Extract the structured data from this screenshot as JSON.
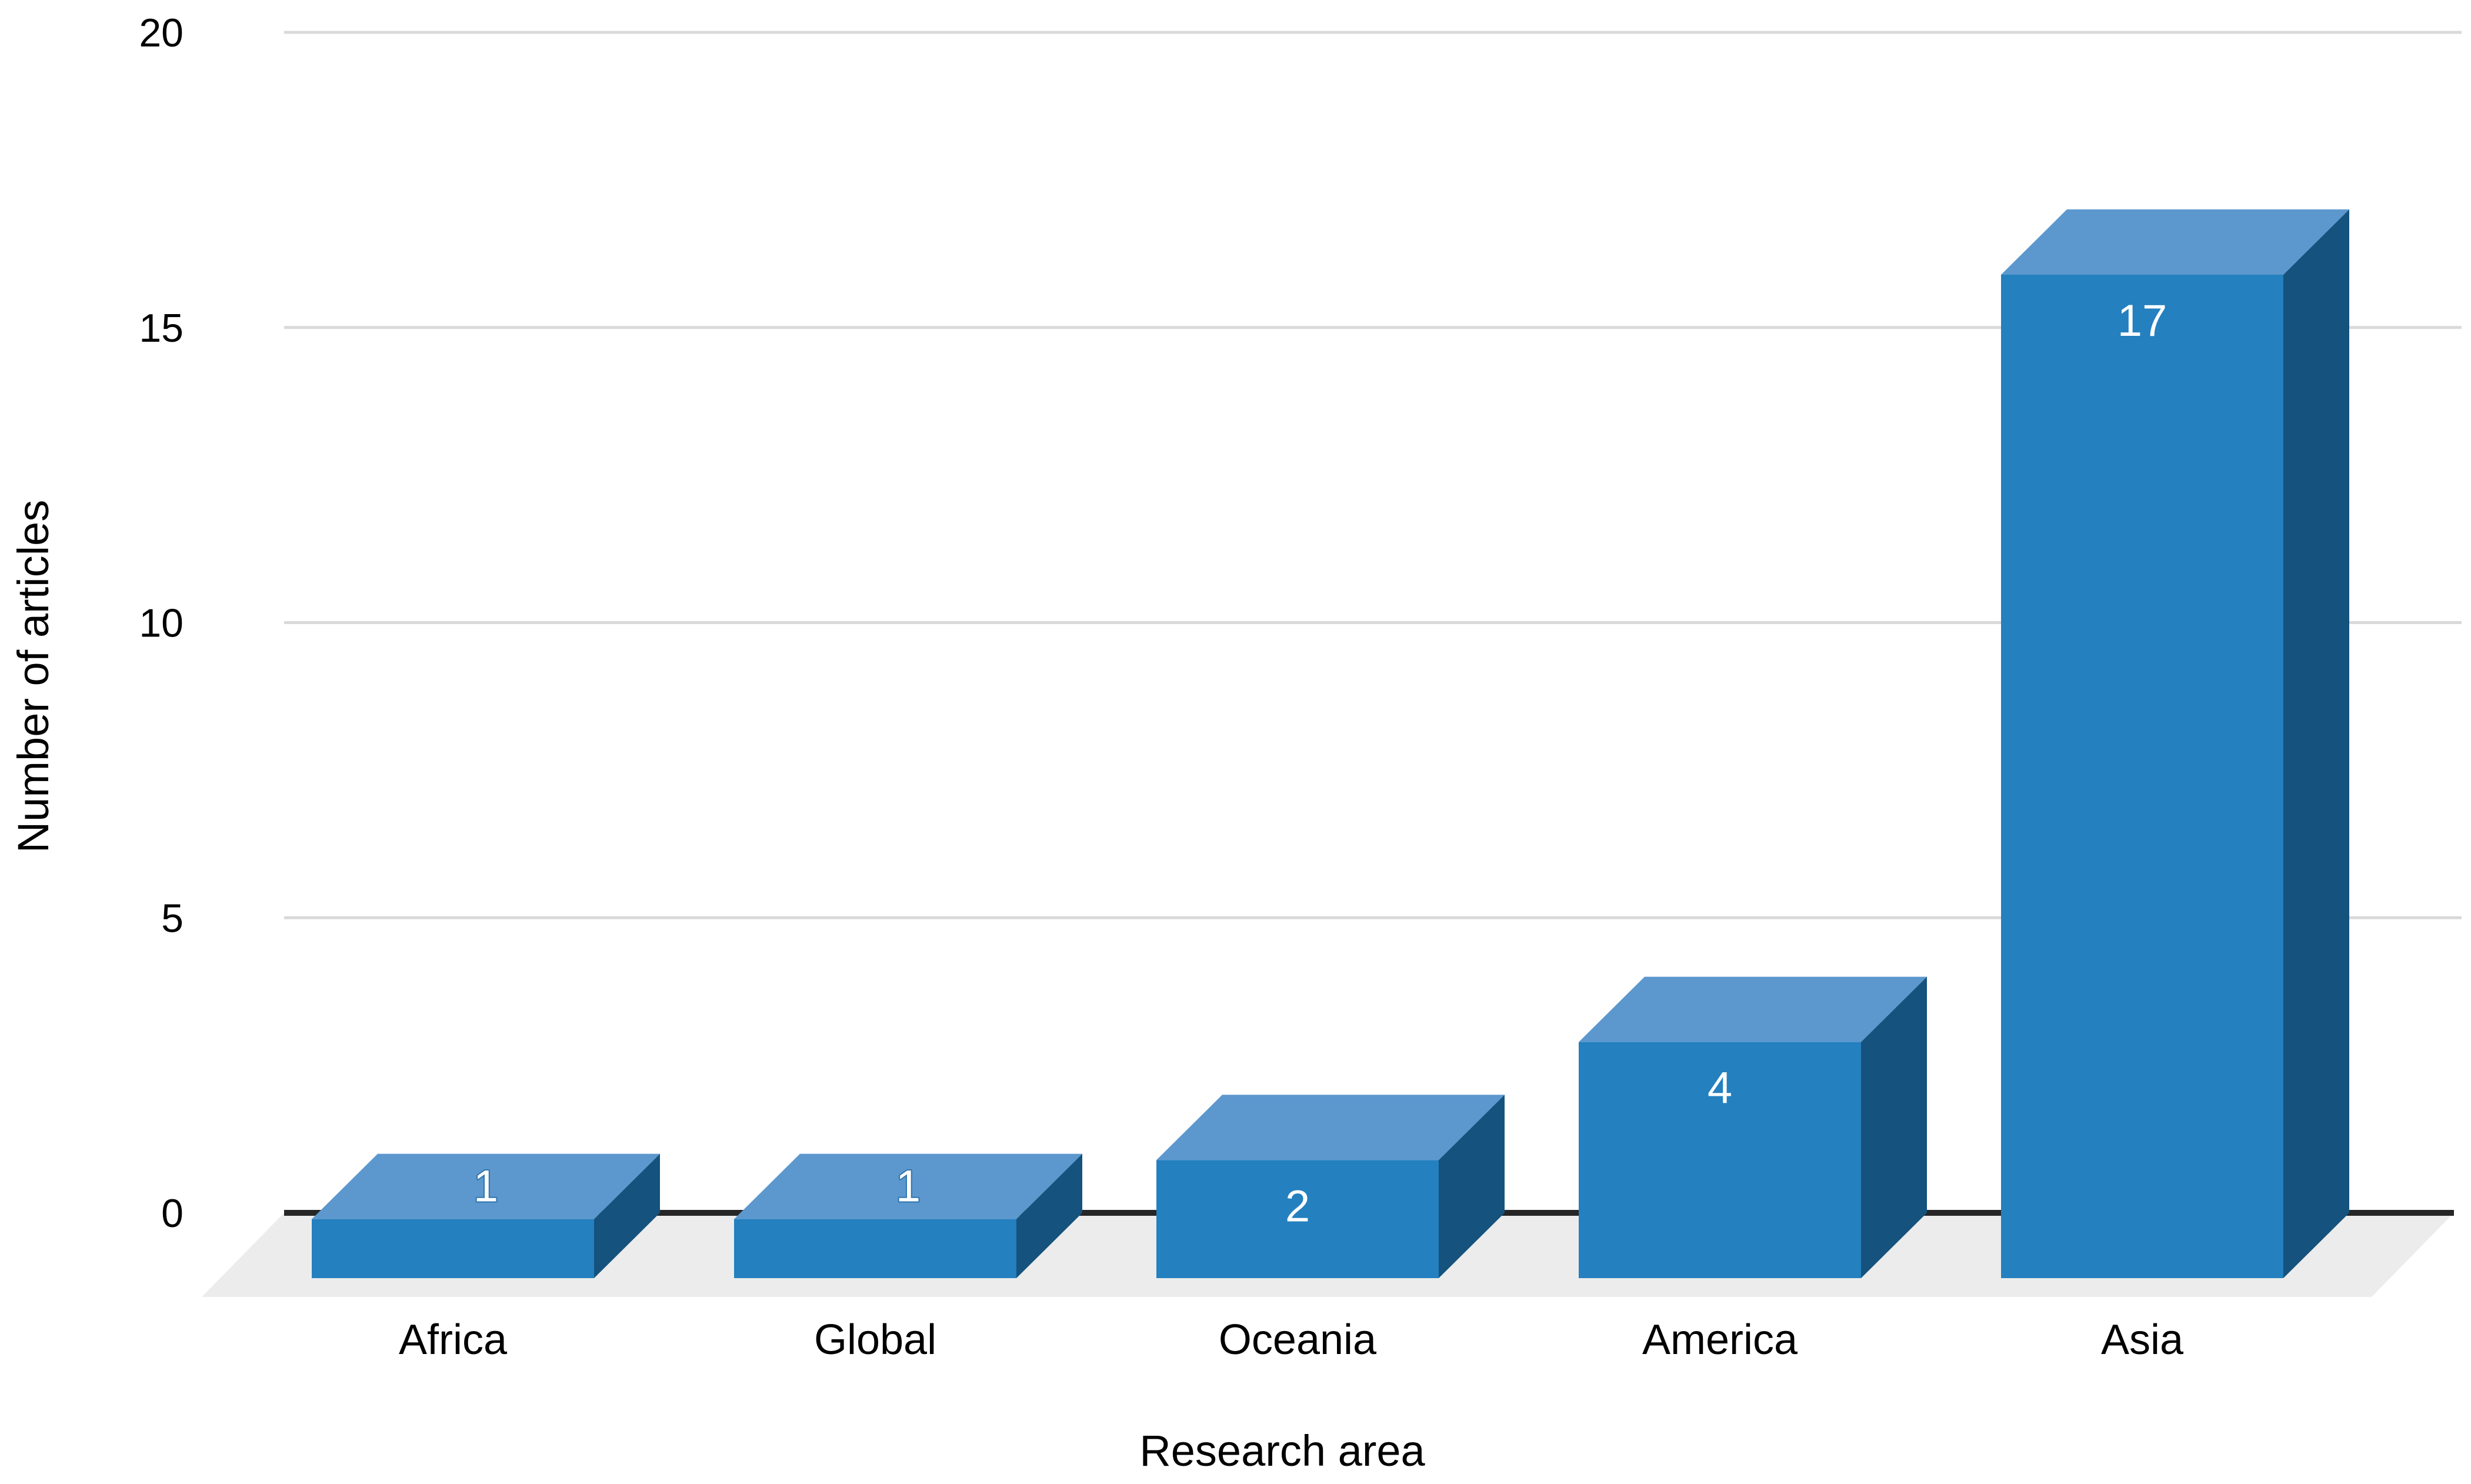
{
  "chart_data": {
    "type": "bar",
    "variant": "3d-column",
    "title": "",
    "xlabel": "Research area",
    "ylabel": "Number of articles",
    "categories": [
      "Africa",
      "Global",
      "Oceania",
      "America",
      "Asia"
    ],
    "values": [
      1,
      1,
      2,
      4,
      17
    ],
    "data_labels": [
      "1",
      "1",
      "2",
      "4",
      "17"
    ],
    "label_inside": [
      false,
      false,
      true,
      true,
      true
    ],
    "ylim": [
      0,
      20
    ],
    "yticks": [
      0,
      5,
      10,
      15,
      20
    ],
    "grid": true,
    "legend": false
  },
  "colors": {
    "bar_front": "#2480BF",
    "bar_top": "#5C98CE",
    "bar_side": "#15527D",
    "floor": "#ECECEC",
    "gridline": "#D9D9D9",
    "zero_line": "#262626",
    "text": "#000000",
    "value_label": "#FFFFFF",
    "value_label_outline": "#2E74AD"
  }
}
